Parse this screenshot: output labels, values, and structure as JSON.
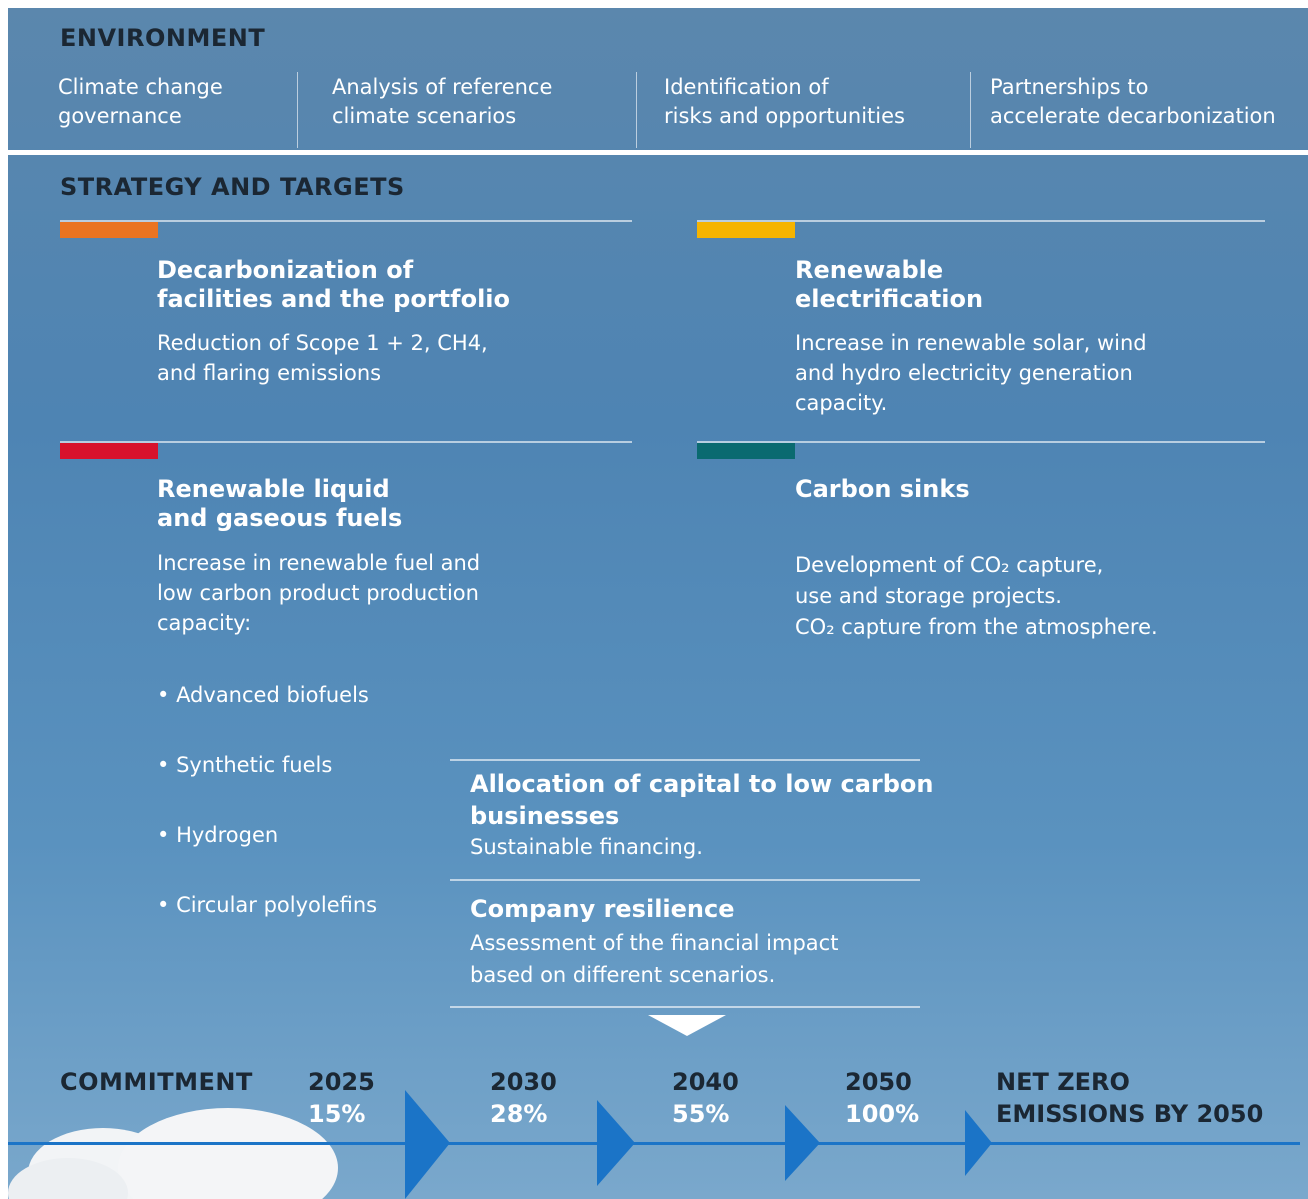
{
  "environment": {
    "title": "ENVIRONMENT",
    "items": [
      "Climate change\ngovernance",
      "Analysis of reference\nclimate scenarios",
      "Identification of\nrisks and opportunities",
      "Partnerships to\naccelerate decarbonization"
    ]
  },
  "strategy": {
    "title": "STRATEGY AND TARGETS",
    "pillars": [
      {
        "color": "#ea7421",
        "title": "Decarbonization of\nfacilities and the portfolio",
        "description": "Reduction of Scope 1 + 2, CH4,\nand flaring emissions"
      },
      {
        "color": "#f6b400",
        "title": "Renewable\nelectrification",
        "description": "Increase in renewable solar, wind\nand hydro electricity generation\ncapacity."
      },
      {
        "color": "#d8122c",
        "title": "Renewable liquid\nand gaseous fuels",
        "description": "Increase in renewable fuel and\nlow carbon product production\ncapacity:",
        "bullets": [
          "Advanced biofuels",
          "Synthetic fuels",
          "Hydrogen",
          "Circular polyolefins"
        ]
      },
      {
        "color": "#0a6a70",
        "title": "Carbon sinks",
        "description": "Development of CO₂ capture,\nuse and storage projects.\nCO₂ capture from the atmosphere."
      }
    ]
  },
  "enablers": [
    {
      "title": "Allocation of capital to low carbon\nbusinesses",
      "description": "Sustainable financing."
    },
    {
      "title": "Company resilience",
      "description": "Assessment of the financial impact\nbased on different scenarios."
    }
  ],
  "commitment": {
    "title": "COMMITMENT",
    "milestones": [
      {
        "year": "2025",
        "target": "15%"
      },
      {
        "year": "2030",
        "target": "28%"
      },
      {
        "year": "2040",
        "target": "55%"
      },
      {
        "year": "2050",
        "target": "100%"
      }
    ],
    "goal": "NET ZERO\nEMISSIONS BY 2050"
  }
}
